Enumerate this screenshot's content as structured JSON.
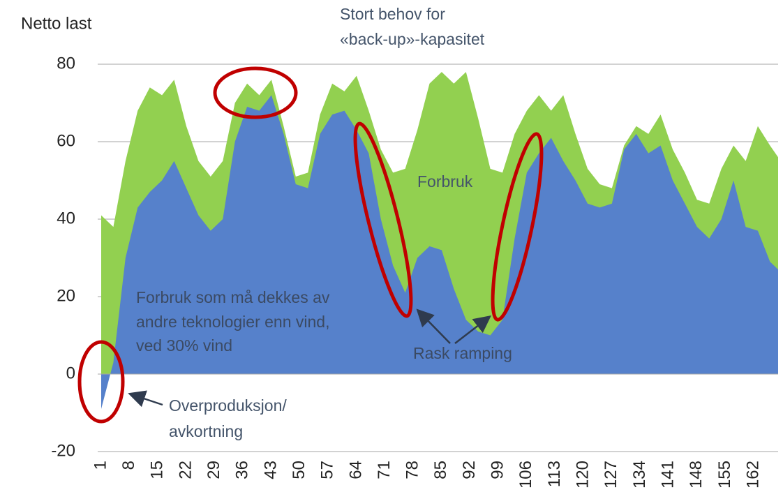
{
  "chart_data": {
    "type": "area",
    "y_label": "Netto last",
    "title_lines": [
      "Stort behov for",
      "«back-up»-kapasitet"
    ],
    "x": [
      1,
      4,
      7,
      10,
      13,
      16,
      19,
      22,
      25,
      28,
      31,
      34,
      37,
      40,
      43,
      46,
      49,
      52,
      55,
      58,
      61,
      64,
      67,
      70,
      73,
      76,
      79,
      82,
      85,
      88,
      91,
      94,
      97,
      100,
      103,
      106,
      109,
      112,
      115,
      118,
      121,
      124,
      127,
      130,
      133,
      136,
      139,
      142,
      145,
      148,
      151,
      154,
      157,
      160,
      163,
      166,
      168
    ],
    "series": [
      {
        "name": "Forbruk",
        "color": "#92d050",
        "values": [
          41,
          38,
          55,
          68,
          74,
          72,
          76,
          64,
          55,
          51,
          55,
          70,
          75,
          72,
          76,
          64,
          51,
          52,
          67,
          75,
          73,
          77,
          68,
          58,
          52,
          53,
          63,
          75,
          78,
          75,
          78,
          66,
          53,
          52,
          62,
          68,
          72,
          68,
          72,
          62,
          53,
          49,
          48,
          59,
          64,
          62,
          67,
          58,
          52,
          45,
          44,
          53,
          59,
          55,
          64,
          59,
          56
        ]
      },
      {
        "label_lines": [
          "Forbruk som må dekkes av",
          "andre teknologier enn vind,",
          "ved 30% vind"
        ],
        "color": "#5681cb",
        "values": [
          -9,
          3,
          30,
          43,
          47,
          50,
          55,
          48,
          41,
          37,
          40,
          60,
          69,
          68,
          72,
          62,
          49,
          48,
          62,
          67,
          68,
          63,
          57,
          40,
          28,
          21,
          30,
          33,
          32,
          22,
          14,
          11,
          10,
          14,
          35,
          52,
          57,
          61,
          55,
          50,
          44,
          43,
          44,
          58,
          62,
          57,
          59,
          50,
          44,
          38,
          35,
          40,
          50,
          38,
          37,
          29,
          27
        ]
      }
    ],
    "annotations": {
      "ramping": "Rask ramping",
      "overproduction_lines": [
        "Overproduksjon/",
        "avkortning"
      ]
    },
    "xlim": [
      1,
      168
    ],
    "xticks": [
      1,
      8,
      15,
      22,
      29,
      36,
      43,
      50,
      57,
      64,
      71,
      78,
      85,
      92,
      99,
      106,
      113,
      120,
      127,
      134,
      141,
      148,
      155,
      162
    ],
    "ylim": [
      -20,
      80
    ],
    "yticks": [
      -20,
      0,
      20,
      40,
      60,
      80
    ],
    "grid": true
  }
}
